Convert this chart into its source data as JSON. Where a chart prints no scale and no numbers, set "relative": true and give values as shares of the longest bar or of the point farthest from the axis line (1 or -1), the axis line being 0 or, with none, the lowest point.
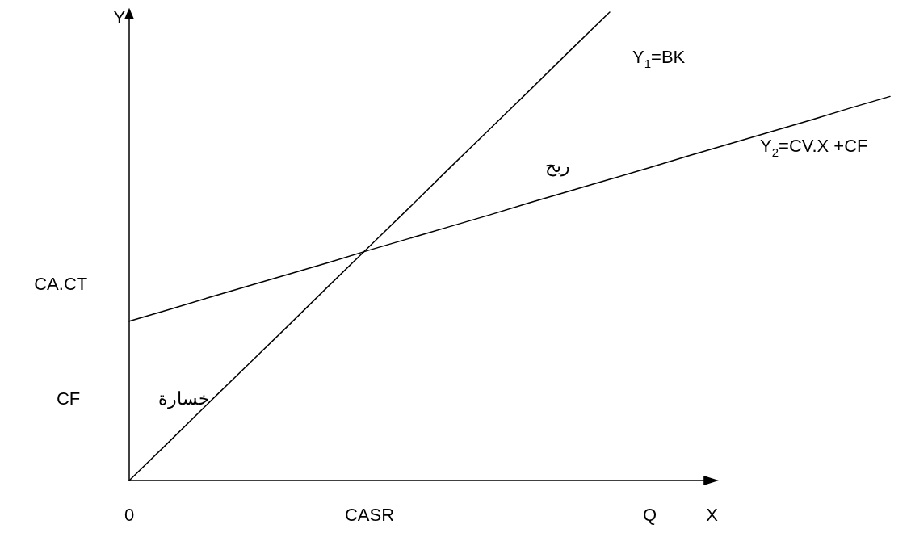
{
  "chart_data": {
    "type": "line",
    "relative": true,
    "xlabel": "X",
    "ylabel": "Y",
    "categories": [
      "0",
      null,
      null,
      null,
      null,
      null,
      "CASR",
      null,
      null,
      null,
      null,
      null,
      null,
      "Q",
      null,
      null,
      null,
      null,
      null,
      null
    ],
    "series": [
      {
        "name": "Y$_{1}$=BK",
        "color": "#000000",
        "values": [
          0,
          0.083,
          0.167,
          0.25,
          0.333,
          0.417,
          0.5,
          0.583,
          0.667,
          0.75,
          0.833,
          0.917,
          1,
          null,
          null,
          null,
          null,
          null,
          null,
          null
        ]
      },
      {
        "name": "Y$_{2}$=CV.X +CF",
        "color": "#000000",
        "values": [
          0.34,
          0.365,
          0.391,
          0.416,
          0.441,
          0.466,
          0.492,
          0.517,
          0.542,
          0.567,
          0.593,
          0.618,
          0.643,
          0.668,
          0.694,
          0.719,
          0.744,
          0.769,
          0.795,
          0.82
        ]
      }
    ],
    "annotations": [
      "CA.CT",
      "CF",
      "ربح",
      "خسارة"
    ]
  }
}
